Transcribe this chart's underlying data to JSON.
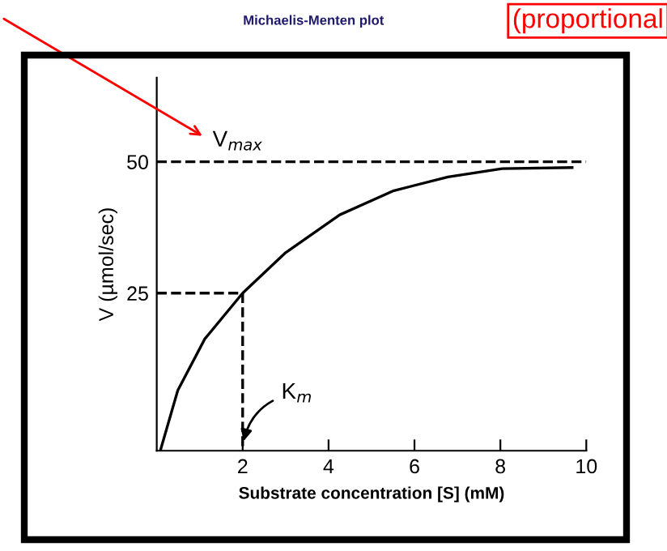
{
  "chart_data": {
    "type": "line",
    "title": "Michaelis-Menten plot",
    "xlabel": "Substrate concentration [S] (mM)",
    "ylabel": "V (µmol/sec)",
    "xlim": [
      0,
      10
    ],
    "xticks": [
      2,
      4,
      6,
      8,
      10
    ],
    "ylim": [
      -5,
      66
    ],
    "yticks": [
      25,
      50
    ],
    "grid": false,
    "legend": false,
    "series": [
      {
        "color": "#000000",
        "x": [
          0.09,
          0.49,
          1.12,
          2.0,
          3.0,
          4.26,
          5.52,
          6.78,
          8.04,
          9.67
        ],
        "values": [
          -4.8,
          6.5,
          16.3,
          25,
          32.7,
          39.9,
          44.5,
          47.1,
          48.7,
          48.9
        ]
      },
      {
        "color": "#000000",
        "line_style": "dashed",
        "x": [
          0,
          2,
          2
        ],
        "values": [
          25,
          25,
          -5
        ]
      }
    ],
    "ref_lines": [
      {
        "axis": "y",
        "value": 50,
        "color": "#000000",
        "line_style": "dashed",
        "label": "V$_{max}$"
      }
    ],
    "annotations": [
      {
        "text": "K$_{m}$",
        "x": 2,
        "y": -4
      },
      "(proportional"
    ]
  }
}
